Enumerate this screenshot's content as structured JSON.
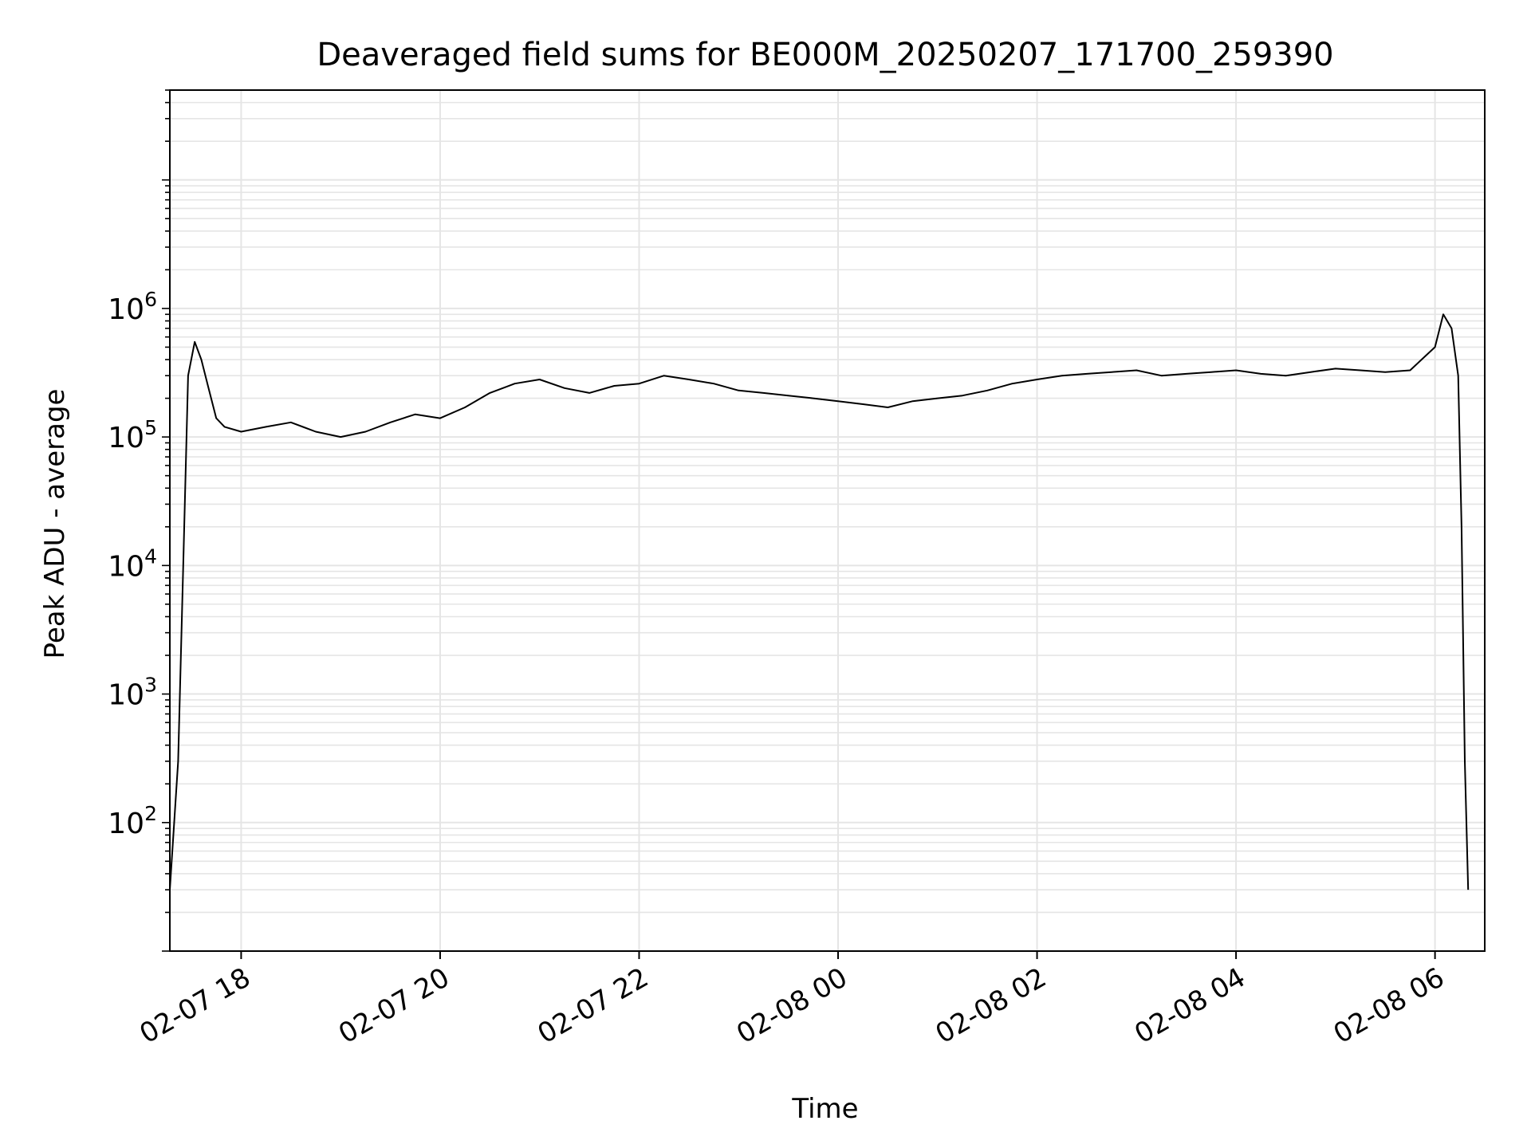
{
  "chart_data": {
    "type": "line",
    "title": "Deaveraged field sums for BE000M_20250207_171700_259390",
    "xlabel": "Time",
    "ylabel": "Peak ADU - average",
    "x_scale": "time",
    "y_scale": "log",
    "xlim": [
      "2025-02-07 17:17",
      "2025-02-08 06:30"
    ],
    "ylim": [
      10,
      50000000
    ],
    "grid": "on (major and minor)",
    "legend": "none",
    "line_color": "#000000",
    "grid_color": "#e5e5e5",
    "x_ticks": [
      {
        "value": "2025-02-07 18:00",
        "label": "02-07 18"
      },
      {
        "value": "2025-02-07 20:00",
        "label": "02-07 20"
      },
      {
        "value": "2025-02-07 22:00",
        "label": "02-07 22"
      },
      {
        "value": "2025-02-08 00:00",
        "label": "02-08 00"
      },
      {
        "value": "2025-02-08 02:00",
        "label": "02-08 02"
      },
      {
        "value": "2025-02-08 04:00",
        "label": "02-08 04"
      },
      {
        "value": "2025-02-08 06:00",
        "label": "02-08 06"
      }
    ],
    "y_ticks": [
      {
        "value": 100,
        "base": "10",
        "exp": "2"
      },
      {
        "value": 1000,
        "base": "10",
        "exp": "3"
      },
      {
        "value": 10000,
        "base": "10",
        "exp": "4"
      },
      {
        "value": 100000,
        "base": "10",
        "exp": "5"
      },
      {
        "value": 1000000,
        "base": "10",
        "exp": "6"
      }
    ],
    "series": [
      {
        "x": [
          "2025-02-07 17:17",
          "2025-02-07 17:22",
          "2025-02-07 17:25",
          "2025-02-07 17:28",
          "2025-02-07 17:32",
          "2025-02-07 17:36",
          "2025-02-07 17:40",
          "2025-02-07 17:45",
          "2025-02-07 17:50",
          "2025-02-07 18:00",
          "2025-02-07 18:15",
          "2025-02-07 18:30",
          "2025-02-07 18:45",
          "2025-02-07 19:00",
          "2025-02-07 19:15",
          "2025-02-07 19:30",
          "2025-02-07 19:45",
          "2025-02-07 20:00",
          "2025-02-07 20:15",
          "2025-02-07 20:30",
          "2025-02-07 20:45",
          "2025-02-07 21:00",
          "2025-02-07 21:15",
          "2025-02-07 21:30",
          "2025-02-07 21:45",
          "2025-02-07 22:00",
          "2025-02-07 22:15",
          "2025-02-07 22:30",
          "2025-02-07 22:45",
          "2025-02-07 23:00",
          "2025-02-07 23:15",
          "2025-02-07 23:30",
          "2025-02-07 23:45",
          "2025-02-08 00:00",
          "2025-02-08 00:15",
          "2025-02-08 00:30",
          "2025-02-08 00:45",
          "2025-02-08 01:00",
          "2025-02-08 01:15",
          "2025-02-08 01:30",
          "2025-02-08 01:45",
          "2025-02-08 02:00",
          "2025-02-08 02:15",
          "2025-02-08 02:30",
          "2025-02-08 02:45",
          "2025-02-08 03:00",
          "2025-02-08 03:15",
          "2025-02-08 03:30",
          "2025-02-08 03:45",
          "2025-02-08 04:00",
          "2025-02-08 04:15",
          "2025-02-08 04:30",
          "2025-02-08 04:45",
          "2025-02-08 05:00",
          "2025-02-08 05:15",
          "2025-02-08 05:30",
          "2025-02-08 05:45",
          "2025-02-08 06:00",
          "2025-02-08 06:05",
          "2025-02-08 06:10",
          "2025-02-08 06:14",
          "2025-02-08 06:16",
          "2025-02-08 06:18",
          "2025-02-08 06:20"
        ],
        "y": [
          30,
          300,
          9000,
          300000,
          550000,
          400000,
          250000,
          140000,
          120000,
          110000,
          120000,
          130000,
          110000,
          100000,
          110000,
          130000,
          150000,
          140000,
          170000,
          220000,
          260000,
          280000,
          240000,
          220000,
          250000,
          260000,
          300000,
          280000,
          260000,
          230000,
          220000,
          210000,
          200000,
          190000,
          180000,
          170000,
          190000,
          200000,
          210000,
          230000,
          260000,
          280000,
          300000,
          310000,
          320000,
          330000,
          300000,
          310000,
          320000,
          330000,
          310000,
          300000,
          320000,
          340000,
          330000,
          320000,
          330000,
          500000,
          900000,
          700000,
          300000,
          20000,
          300,
          30
        ]
      }
    ]
  }
}
